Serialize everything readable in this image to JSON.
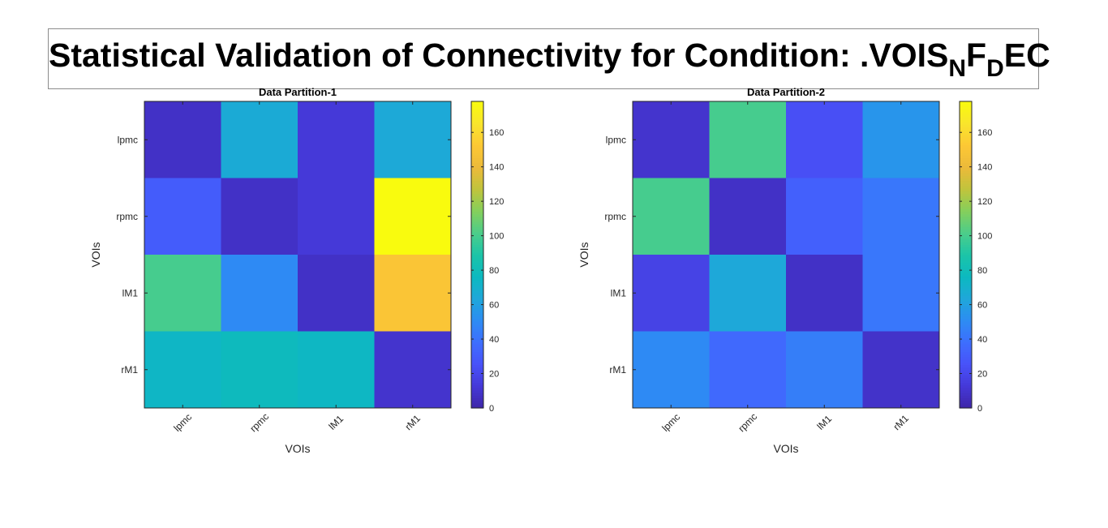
{
  "figure": {
    "title_parts": [
      {
        "text": "Statistical Validation of Connectivity for Condition: .VOIS",
        "sub": false
      },
      {
        "text": "N",
        "sub": true
      },
      {
        "text": "F",
        "sub": false
      },
      {
        "text": "D",
        "sub": true
      },
      {
        "text": "EC",
        "sub": false
      }
    ]
  },
  "colormap": [
    "#3e26a8",
    "#4538d7",
    "#4852f9",
    "#3e6efe",
    "#2d8cf3",
    "#1fa7da",
    "#0cb9c0",
    "#1cc4a8",
    "#4ccd8a",
    "#85cf5c",
    "#c0c43c",
    "#ecba3a",
    "#fdc835",
    "#f9e52c",
    "#f9fb0e"
  ],
  "chart_data": [
    {
      "type": "heatmap",
      "title": "Data Partition-1",
      "xlabel": "VOIs",
      "ylabel": "VOIs",
      "x_categories": [
        "lpmc",
        "rpmc",
        "lM1",
        "rM1"
      ],
      "y_categories": [
        "lpmc",
        "rpmc",
        "lM1",
        "rM1"
      ],
      "values": [
        [
          8,
          66,
          13,
          65
        ],
        [
          30,
          8,
          13,
          178
        ],
        [
          100,
          50,
          8,
          150
        ],
        [
          74,
          78,
          75,
          10
        ]
      ],
      "clim": [
        0,
        178
      ],
      "colorbar_ticks": [
        0,
        20,
        40,
        60,
        80,
        100,
        120,
        140,
        160
      ]
    },
    {
      "type": "heatmap",
      "title": "Data Partition-2",
      "xlabel": "VOIs",
      "ylabel": "VOIs",
      "x_categories": [
        "lpmc",
        "rpmc",
        "lM1",
        "rM1"
      ],
      "y_categories": [
        "lpmc",
        "rpmc",
        "lM1",
        "rM1"
      ],
      "values": [
        [
          10,
          100,
          24,
          55
        ],
        [
          100,
          8,
          32,
          42
        ],
        [
          18,
          64,
          8,
          42
        ],
        [
          50,
          36,
          45,
          9
        ]
      ],
      "clim": [
        0,
        178
      ],
      "colorbar_ticks": [
        0,
        20,
        40,
        60,
        80,
        100,
        120,
        140,
        160
      ]
    }
  ]
}
